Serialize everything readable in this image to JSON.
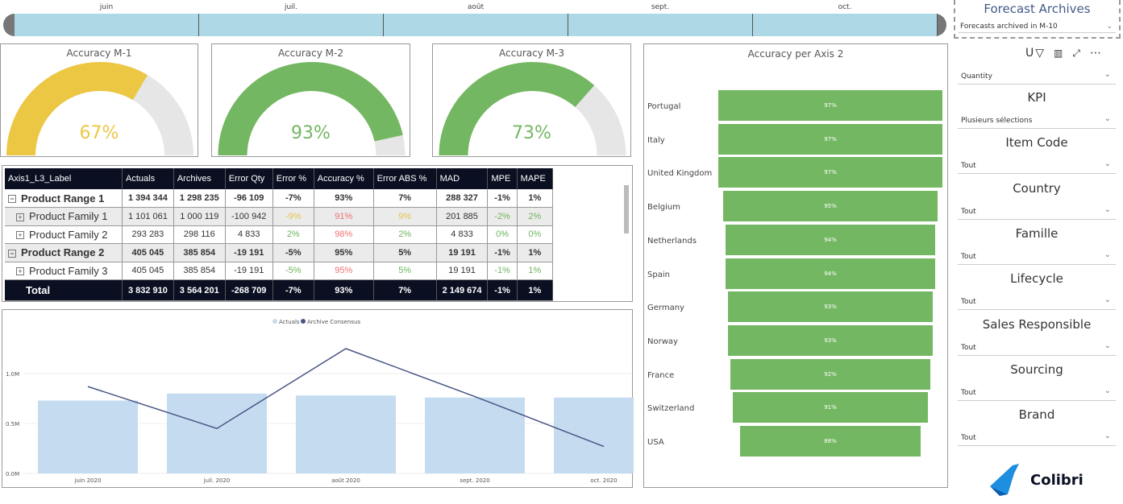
{
  "timeline": {
    "months": [
      "juin",
      "juil.",
      "août",
      "sept.",
      "oct."
    ]
  },
  "gauges": [
    {
      "title": "Accuracy M-1",
      "value": 67,
      "label": "67%",
      "color": "#ecc744"
    },
    {
      "title": "Accuracy M-2",
      "value": 93,
      "label": "93%",
      "color": "#74b762"
    },
    {
      "title": "Accuracy M-3",
      "value": 73,
      "label": "73%",
      "color": "#74b762"
    }
  ],
  "table": {
    "headers": [
      "Axis1_L3_Label",
      "Actuals",
      "Archives",
      "Error Qty",
      "Error %",
      "Accuracy %",
      "Error ABS %",
      "MAD",
      "MPE",
      "MAPE"
    ],
    "rows": [
      {
        "type": "range",
        "expand": "−",
        "cells": [
          "Product Range 1",
          "1 394 344",
          "1 298 235",
          "-96 109",
          "-7%",
          "93%",
          "7%",
          "288 327",
          "-1%",
          "1%"
        ]
      },
      {
        "type": "family",
        "expand": "+",
        "cells": [
          "Product Family 1",
          "1 101 061",
          "1 000 119",
          "-100 942",
          "-9%",
          "91%",
          "9%",
          "201 885",
          "-2%",
          "2%"
        ],
        "colors": [
          "",
          "",
          "",
          "",
          "yel",
          "red",
          "yel",
          "",
          "grn",
          "grn"
        ]
      },
      {
        "type": "family",
        "expand": "+",
        "cells": [
          "Product Family 2",
          "293 283",
          "298 116",
          "4 833",
          "2%",
          "98%",
          "2%",
          "4 833",
          "0%",
          "0%"
        ],
        "colors": [
          "",
          "",
          "",
          "",
          "grn",
          "red",
          "grn",
          "",
          "grn",
          "grn"
        ]
      },
      {
        "type": "range",
        "expand": "−",
        "cells": [
          "Product Range 2",
          "405 045",
          "385 854",
          "-19 191",
          "-5%",
          "95%",
          "5%",
          "19 191",
          "-1%",
          "1%"
        ]
      },
      {
        "type": "family",
        "expand": "+",
        "cells": [
          "Product Family 3",
          "405 045",
          "385 854",
          "-19 191",
          "-5%",
          "95%",
          "5%",
          "19 191",
          "-1%",
          "1%"
        ],
        "colors": [
          "",
          "",
          "",
          "",
          "grn",
          "red",
          "grn",
          "",
          "grn",
          "grn"
        ]
      }
    ],
    "total": [
      "Total",
      "3 832 910",
      "3 564 201",
      "-268 709",
      "-7%",
      "93%",
      "7%",
      "2 149 674",
      "-1%",
      "1%"
    ]
  },
  "chart_data": [
    {
      "type": "bar+line",
      "legend": [
        "Actuals",
        "Archive Consensus"
      ],
      "legend_position": "top",
      "categories": [
        "juin 2020",
        "juil. 2020",
        "août 2020",
        "sept. 2020",
        "oct. 2020"
      ],
      "yticks": [
        "0.0M",
        "0.5M",
        "1.0M"
      ],
      "ylim": [
        0,
        1.3
      ],
      "series": [
        {
          "name": "Actuals",
          "type": "bar",
          "color": "#c5dcf0",
          "values": [
            0.73,
            0.8,
            0.78,
            0.76,
            0.76
          ]
        },
        {
          "name": "Archive Consensus",
          "type": "line",
          "color": "#4a5585",
          "values": [
            0.87,
            0.45,
            1.25,
            0.77,
            0.27
          ]
        }
      ]
    },
    {
      "type": "bar",
      "orientation": "horizontal",
      "title": "Accuracy per Axis 2",
      "color": "#74b762",
      "categories": [
        "Portugal",
        "Italy",
        "United Kingdom",
        "Belgium",
        "Netherlands",
        "Spain",
        "Germany",
        "Norway",
        "France",
        "Switzerland",
        "USA"
      ],
      "values": [
        97,
        97,
        97,
        95,
        94,
        94,
        93,
        93,
        92,
        91,
        88
      ],
      "labels": [
        "97%",
        "97%",
        "97%",
        "95%",
        "94%",
        "94%",
        "93%",
        "93%",
        "92%",
        "91%",
        "88%"
      ]
    }
  ],
  "sidebar": {
    "archive_title": "Forecast Archives",
    "archive_value": "Forecasts archived in M-10",
    "toolbar": [
      "U"
    ],
    "measure": "Quantity",
    "slicers": [
      {
        "title": "KPI",
        "value": "Plusieurs sélections"
      },
      {
        "title": "Item Code",
        "value": "Tout"
      },
      {
        "title": "Country",
        "value": "Tout"
      },
      {
        "title": "Famille",
        "value": "Tout"
      },
      {
        "title": "Lifecycle",
        "value": "Tout"
      },
      {
        "title": "Sales Responsible",
        "value": "Tout"
      },
      {
        "title": "Sourcing",
        "value": "Tout"
      },
      {
        "title": "Brand",
        "value": "Tout"
      }
    ],
    "logo": "Colibri"
  }
}
